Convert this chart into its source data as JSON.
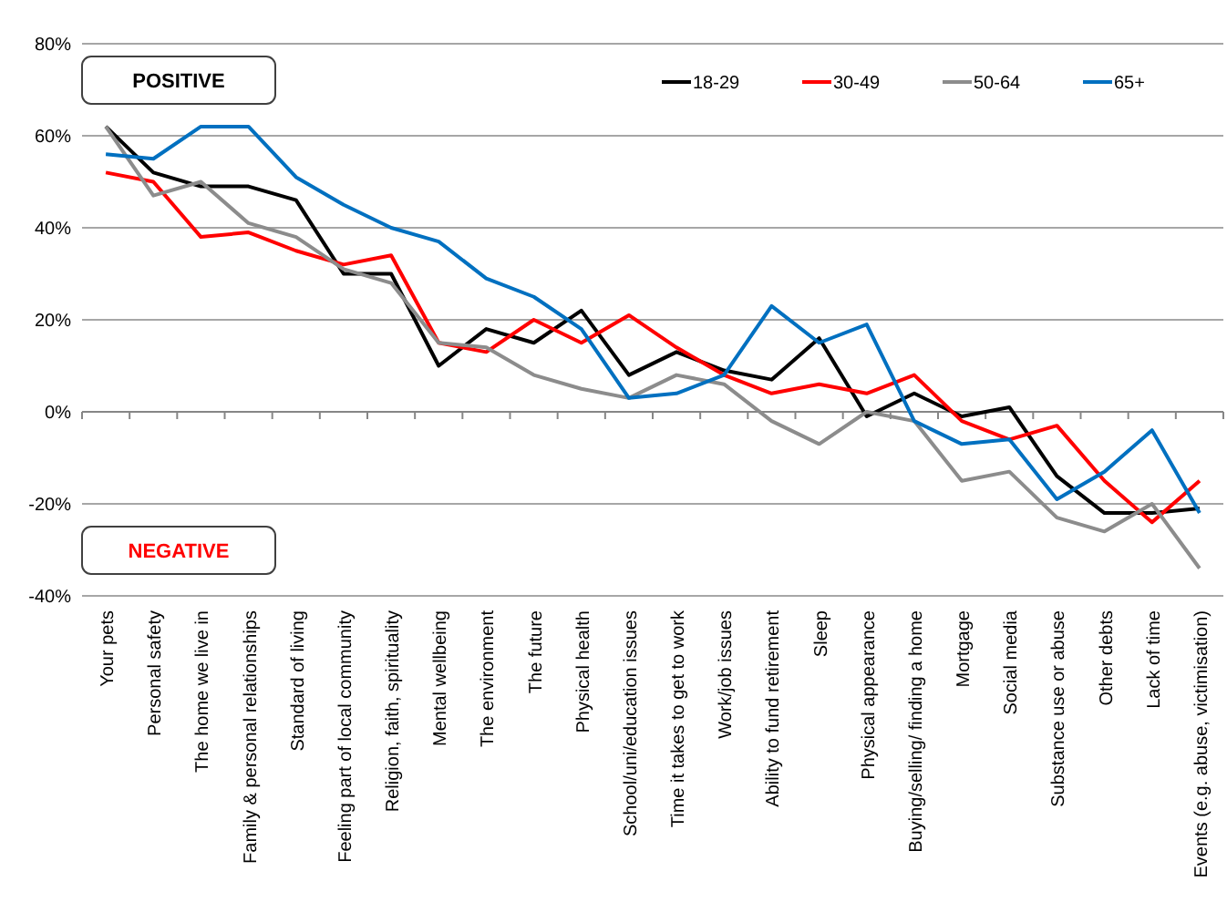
{
  "chart_data": {
    "type": "line",
    "categories": [
      "Your pets",
      "Personal safety",
      "The home we live in",
      "Family & personal relationships",
      "Standard of living",
      "Feeling part of local community",
      "Religion, faith, spirituality",
      "Mental wellbeing",
      "The environment",
      "The future",
      "Physical health",
      "School/uni/education issues",
      "Time it takes to get to work",
      "Work/job issues",
      "Ability to fund retirement",
      "Sleep",
      "Physical appearance",
      "Buying/selling/ finding a home",
      "Mortgage",
      "Social media",
      "Substance use or abuse",
      "Other debts",
      "Lack of time",
      "Events (e.g. abuse, victimisation)"
    ],
    "series": [
      {
        "name": "18-29",
        "color": "#000000",
        "values": [
          62,
          52,
          49,
          49,
          46,
          30,
          30,
          10,
          18,
          15,
          22,
          8,
          13,
          9,
          7,
          16,
          -1,
          4,
          -1,
          1,
          -14,
          -22,
          -22,
          -21
        ]
      },
      {
        "name": "30-49",
        "color": "#ff0000",
        "values": [
          52,
          50,
          38,
          39,
          35,
          32,
          34,
          15,
          13,
          20,
          15,
          21,
          14,
          8,
          4,
          6,
          4,
          8,
          -2,
          -6,
          -3,
          -15,
          -24,
          -15
        ]
      },
      {
        "name": "50-64",
        "color": "#8c8c8c",
        "values": [
          62,
          47,
          50,
          41,
          38,
          31,
          28,
          15,
          14,
          8,
          5,
          3,
          8,
          6,
          -2,
          -7,
          0,
          -2,
          -15,
          -13,
          -23,
          -26,
          -20,
          -34
        ]
      },
      {
        "name": "65+",
        "color": "#0070c0",
        "values": [
          56,
          55,
          62,
          62,
          51,
          45,
          40,
          37,
          29,
          25,
          18,
          3,
          4,
          8,
          23,
          15,
          19,
          -2,
          -7,
          -6,
          -19,
          -13,
          -4,
          -22
        ]
      }
    ],
    "ylim": [
      -40,
      80
    ],
    "yticks": [
      {
        "value": -40,
        "label": "-40%"
      },
      {
        "value": -20,
        "label": "-20%"
      },
      {
        "value": 0,
        "label": "0%"
      },
      {
        "value": 20,
        "label": "20%"
      },
      {
        "value": 40,
        "label": "40%"
      },
      {
        "value": 60,
        "label": "60%"
      },
      {
        "value": 80,
        "label": "80%"
      }
    ],
    "grid": "y",
    "legend": "top right",
    "marker": "none",
    "line_style": "solid",
    "annotations": [
      "POSITIVE",
      "NEGATIVE"
    ]
  }
}
